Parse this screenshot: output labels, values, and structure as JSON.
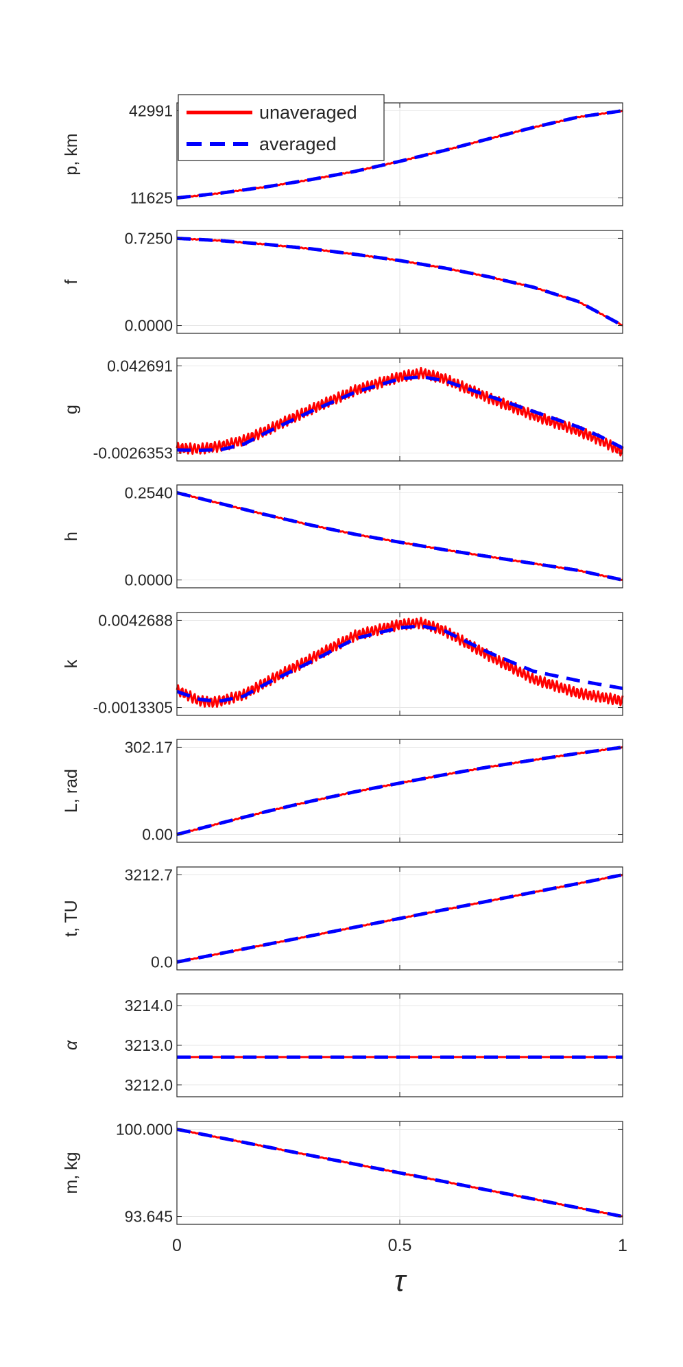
{
  "chart_data": {
    "type": "line",
    "xlabel": "τ",
    "xlim": [
      0,
      1
    ],
    "xticks": [
      0,
      0.5,
      1
    ],
    "xtick_labels": [
      "0",
      "0.5",
      "1"
    ],
    "legend": {
      "placement": "top-left of first subplot",
      "entries": [
        {
          "name": "unaveraged",
          "color": "#ff0000",
          "style": "solid"
        },
        {
          "name": "averaged",
          "color": "#0000ff",
          "style": "dashed"
        }
      ]
    },
    "colors": {
      "unaveraged": "#ff0000",
      "averaged": "#0000ff"
    },
    "subplots": [
      {
        "ylabel": "p, km",
        "ylabel_italic": false,
        "ylim": [
          11625,
          42991
        ],
        "yticks": [
          11625,
          42991
        ],
        "ytick_labels": [
          "11625",
          "42991"
        ],
        "x": [
          0,
          0.1,
          0.2,
          0.3,
          0.4,
          0.5,
          0.6,
          0.7,
          0.8,
          0.9,
          1.0
        ],
        "series": [
          {
            "name": "averaged",
            "values": [
              11625,
              13400,
              15600,
              18200,
              21200,
              24800,
              28700,
              32900,
              37000,
              40700,
              42991
            ]
          },
          {
            "name": "unaveraged",
            "values": [
              11625,
              13400,
              15600,
              18200,
              21200,
              24800,
              28700,
              32900,
              37000,
              40700,
              42991
            ],
            "oscillation": 0.004
          }
        ]
      },
      {
        "ylabel": "f",
        "ylabel_italic": false,
        "ylim": [
          0,
          0.725
        ],
        "yticks": [
          0,
          0.725
        ],
        "ytick_labels": [
          "0.0000",
          "0.7250"
        ],
        "x": [
          0,
          0.1,
          0.2,
          0.3,
          0.4,
          0.5,
          0.6,
          0.7,
          0.8,
          0.9,
          1.0
        ],
        "series": [
          {
            "name": "averaged",
            "values": [
              0.725,
              0.705,
              0.675,
              0.638,
              0.592,
              0.54,
              0.478,
              0.405,
              0.318,
              0.2,
              0.0
            ]
          },
          {
            "name": "unaveraged",
            "values": [
              0.725,
              0.705,
              0.675,
              0.638,
              0.592,
              0.54,
              0.478,
              0.405,
              0.318,
              0.2,
              0.0
            ],
            "oscillation": 0.004
          }
        ]
      },
      {
        "ylabel": "g",
        "ylabel_italic": false,
        "ylim": [
          -0.0026353,
          0.042691
        ],
        "yticks": [
          -0.0026353,
          0.042691
        ],
        "ytick_labels": [
          "-0.0026353",
          "0.042691"
        ],
        "x": [
          0,
          0.05,
          0.1,
          0.15,
          0.2,
          0.3,
          0.4,
          0.5,
          0.55,
          0.6,
          0.7,
          0.8,
          0.9,
          0.95,
          1.0
        ],
        "series": [
          {
            "name": "averaged",
            "values": [
              -0.001,
              -0.0012,
              -0.0008,
              0.002,
              0.008,
              0.019,
              0.029,
              0.036,
              0.037,
              0.035,
              0.027,
              0.019,
              0.011,
              0.006,
              0.0
            ]
          },
          {
            "name": "unaveraged",
            "values": [
              0.0,
              -0.0005,
              0.001,
              0.004,
              0.009,
              0.02,
              0.03,
              0.037,
              0.039,
              0.036,
              0.026,
              0.017,
              0.009,
              0.004,
              -0.002
            ],
            "oscillation": 0.06
          }
        ]
      },
      {
        "ylabel": "h",
        "ylabel_italic": false,
        "ylim": [
          0,
          0.254
        ],
        "yticks": [
          0,
          0.254
        ],
        "ytick_labels": [
          "0.0000",
          "0.2540"
        ],
        "x": [
          0,
          0.1,
          0.2,
          0.3,
          0.4,
          0.5,
          0.6,
          0.7,
          0.8,
          0.9,
          1.0
        ],
        "series": [
          {
            "name": "averaged",
            "values": [
              0.254,
              0.222,
              0.19,
              0.16,
              0.133,
              0.11,
              0.088,
              0.068,
              0.048,
              0.028,
              0.0
            ]
          },
          {
            "name": "unaveraged",
            "values": [
              0.254,
              0.222,
              0.19,
              0.16,
              0.133,
              0.11,
              0.088,
              0.068,
              0.048,
              0.028,
              0.0
            ],
            "oscillation": 0.004
          }
        ]
      },
      {
        "ylabel": "k",
        "ylabel_italic": false,
        "ylim": [
          -0.0013305,
          0.0042688
        ],
        "yticks": [
          -0.0013305,
          0.0042688
        ],
        "ytick_labels": [
          "-0.0013305",
          "0.0042688"
        ],
        "x": [
          0,
          0.05,
          0.08,
          0.1,
          0.15,
          0.2,
          0.3,
          0.4,
          0.5,
          0.55,
          0.6,
          0.7,
          0.8,
          0.9,
          1.0
        ],
        "series": [
          {
            "name": "averaged",
            "values": [
              -0.0003,
              -0.0008,
              -0.0009,
              -0.0009,
              -0.0006,
              0.0002,
              0.0016,
              0.0031,
              0.0038,
              0.0039,
              0.0036,
              0.0022,
              0.001,
              0.0004,
              -0.0001
            ]
          },
          {
            "name": "unaveraged",
            "values": [
              -0.0002,
              -0.0009,
              -0.001,
              -0.0009,
              -0.0005,
              0.0003,
              0.0018,
              0.0033,
              0.004,
              0.0041,
              0.0036,
              0.002,
              0.0005,
              -0.0004,
              -0.0009
            ],
            "oscillation": 0.06
          }
        ]
      },
      {
        "ylabel": "L, rad",
        "ylabel_italic": false,
        "ylim": [
          0,
          302.17
        ],
        "yticks": [
          0,
          302.17
        ],
        "ytick_labels": [
          "0.00",
          "302.17"
        ],
        "x": [
          0,
          0.1,
          0.2,
          0.3,
          0.4,
          0.5,
          0.6,
          0.7,
          0.8,
          0.9,
          1.0
        ],
        "series": [
          {
            "name": "averaged",
            "values": [
              0,
              40,
              79,
              115,
              148,
              178,
              207,
              234,
              258,
              281,
              302.17
            ]
          },
          {
            "name": "unaveraged",
            "values": [
              0,
              40,
              79,
              115,
              148,
              178,
              207,
              234,
              258,
              281,
              302.17
            ],
            "oscillation": 0.004
          }
        ]
      },
      {
        "ylabel": "t, TU",
        "ylabel_italic": false,
        "ylim": [
          0,
          3212.7
        ],
        "yticks": [
          0,
          3212.7
        ],
        "ytick_labels": [
          "0.0",
          "3212.7"
        ],
        "x": [
          0,
          1
        ],
        "series": [
          {
            "name": "averaged",
            "values": [
              0,
              3212.7
            ]
          },
          {
            "name": "unaveraged",
            "values": [
              0,
              3212.7
            ],
            "oscillation": 0.003
          }
        ]
      },
      {
        "ylabel": "α",
        "ylabel_italic": true,
        "ylim": [
          3211.9,
          3214.1
        ],
        "yticks": [
          3212.0,
          3213.0,
          3214.0
        ],
        "ytick_labels": [
          "3212.0",
          "3213.0",
          "3214.0"
        ],
        "x": [
          0,
          1
        ],
        "series": [
          {
            "name": "averaged",
            "values": [
              3212.7,
              3212.7
            ]
          },
          {
            "name": "unaveraged",
            "values": [
              3212.7,
              3212.7
            ]
          }
        ]
      },
      {
        "ylabel": "m, kg",
        "ylabel_italic": false,
        "ylim": [
          93.645,
          100.0
        ],
        "yticks": [
          93.645,
          100.0
        ],
        "ytick_labels": [
          "93.645",
          "100.000"
        ],
        "x": [
          0,
          1
        ],
        "series": [
          {
            "name": "averaged",
            "values": [
              100.0,
              93.645
            ]
          },
          {
            "name": "unaveraged",
            "values": [
              100.0,
              93.645
            ],
            "oscillation": 0.003
          }
        ]
      }
    ]
  }
}
